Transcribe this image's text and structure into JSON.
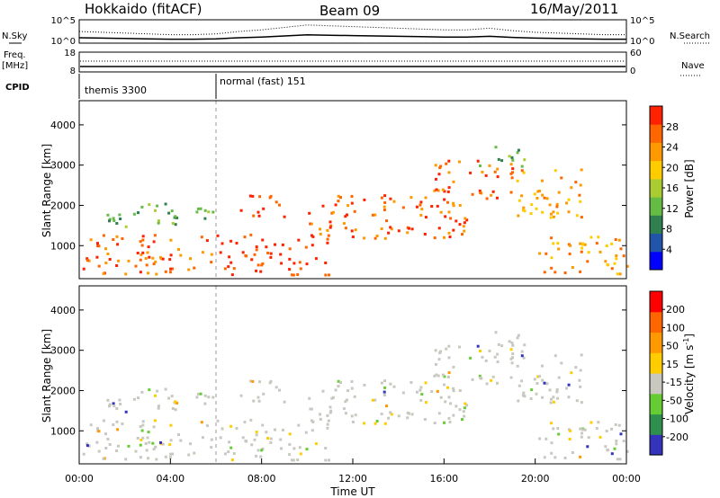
{
  "header": {
    "station": "Hokkaido (fitACF)",
    "beam": "Beam 09",
    "date": "16/May/2011"
  },
  "side_labels": {
    "nsky": "N.Sky",
    "freq_line1": "Freq.",
    "freq_line2": "[MHz]",
    "cpid": "CPID",
    "nsearch": "N.Search",
    "nave": "Nave"
  },
  "cpid_segments": [
    {
      "label": "themis 3300",
      "start_hour": 0
    },
    {
      "label": "normal (fast) 151",
      "start_hour": 6
    }
  ],
  "chart_data": [
    {
      "type": "line",
      "panel": "noise",
      "left_axis": {
        "ticks": [
          "10^5",
          "10^0"
        ]
      },
      "right_axis": {
        "ticks": [
          "10^5",
          "10^0"
        ]
      },
      "series": [
        {
          "name": "N.Sky",
          "style": "solid"
        },
        {
          "name": "N.Search",
          "style": "dotted"
        }
      ],
      "x": [
        0,
        1,
        2,
        3,
        4,
        5,
        6,
        7,
        8,
        9,
        10,
        11,
        12,
        13,
        14,
        15,
        16,
        17,
        18,
        19,
        20,
        21,
        22,
        23,
        24
      ],
      "sky_level": [
        0.5,
        0.45,
        0.4,
        0.35,
        0.3,
        0.3,
        0.35,
        0.5,
        0.6,
        0.75,
        0.9,
        0.85,
        0.8,
        0.75,
        0.7,
        0.65,
        0.6,
        0.6,
        0.7,
        0.55,
        0.45,
        0.4,
        0.35,
        0.3,
        0.3
      ]
    },
    {
      "type": "line",
      "panel": "freq",
      "left_axis": {
        "ticks": [
          "18",
          "8"
        ]
      },
      "right_axis": {
        "ticks": [
          "60",
          "0"
        ]
      },
      "series": [
        {
          "name": "Freq.",
          "style": "solid",
          "value_mhz": 10.5
        },
        {
          "name": "Nave",
          "style": "dotted",
          "value": 22
        }
      ]
    },
    {
      "type": "heatmap",
      "panel": "power",
      "ylabel": "Slant Range [km]",
      "ylim": [
        180,
        4600
      ],
      "yticks": [
        "1000",
        "2000",
        "3000",
        "4000"
      ],
      "xlim": [
        0,
        24
      ],
      "colorbar_label": "Power [dB]",
      "colorbar_ticks": [
        "28",
        "24",
        "20",
        "16",
        "12",
        "8",
        "4"
      ],
      "colorbar_colors": [
        "#0000ff",
        "#2255aa",
        "#2f7f4f",
        "#66bb44",
        "#aacc33",
        "#ffcc00",
        "#ff9900",
        "#ff6600",
        "#ff2200"
      ],
      "echo_bands": [
        {
          "t0": 0.0,
          "t1": 6.0,
          "r0": 300,
          "r1": 1300,
          "class": 7
        },
        {
          "t0": 1.2,
          "t1": 6.0,
          "r0": 1500,
          "r1": 2100,
          "class": 3
        },
        {
          "t0": 6.0,
          "t1": 11.0,
          "r0": 300,
          "r1": 1300,
          "class": 8
        },
        {
          "t0": 7.0,
          "t1": 9.0,
          "r0": 1700,
          "r1": 2300,
          "class": 8
        },
        {
          "t0": 10.0,
          "t1": 17.0,
          "r0": 1200,
          "r1": 2300,
          "class": 7
        },
        {
          "t0": 15.5,
          "t1": 19.0,
          "r0": 2200,
          "r1": 3200,
          "class": 7
        },
        {
          "t0": 17.5,
          "t1": 19.5,
          "r0": 3000,
          "r1": 3500,
          "class": 3
        },
        {
          "t0": 19.0,
          "t1": 22.0,
          "r0": 1700,
          "r1": 3000,
          "class": 6
        },
        {
          "t0": 20.0,
          "t1": 24.0,
          "r0": 300,
          "r1": 1300,
          "class": 6
        }
      ]
    },
    {
      "type": "heatmap",
      "panel": "velocity",
      "ylabel": "Slant Range [km]",
      "ylim": [
        180,
        4600
      ],
      "yticks": [
        "1000",
        "2000",
        "3000",
        "4000"
      ],
      "xlim": [
        0,
        24
      ],
      "xticks": [
        "00:00",
        "04:00",
        "08:00",
        "12:00",
        "16:00",
        "20:00",
        "00:00"
      ],
      "xlabel": "Time UT",
      "colorbar_label": "Velocity [m s",
      "colorbar_label_sup": "-1",
      "colorbar_ticks": [
        "200",
        "100",
        "50",
        "15",
        "-15",
        "-50",
        "-100",
        "-200"
      ],
      "colorbar_colors": [
        "#3333bb",
        "#2f8f4f",
        "#66cc33",
        "#c8c8c0",
        "#ffcc00",
        "#ff9900",
        "#ff6600",
        "#ff0000"
      ],
      "dominant_color": "#c8c8c0"
    }
  ]
}
